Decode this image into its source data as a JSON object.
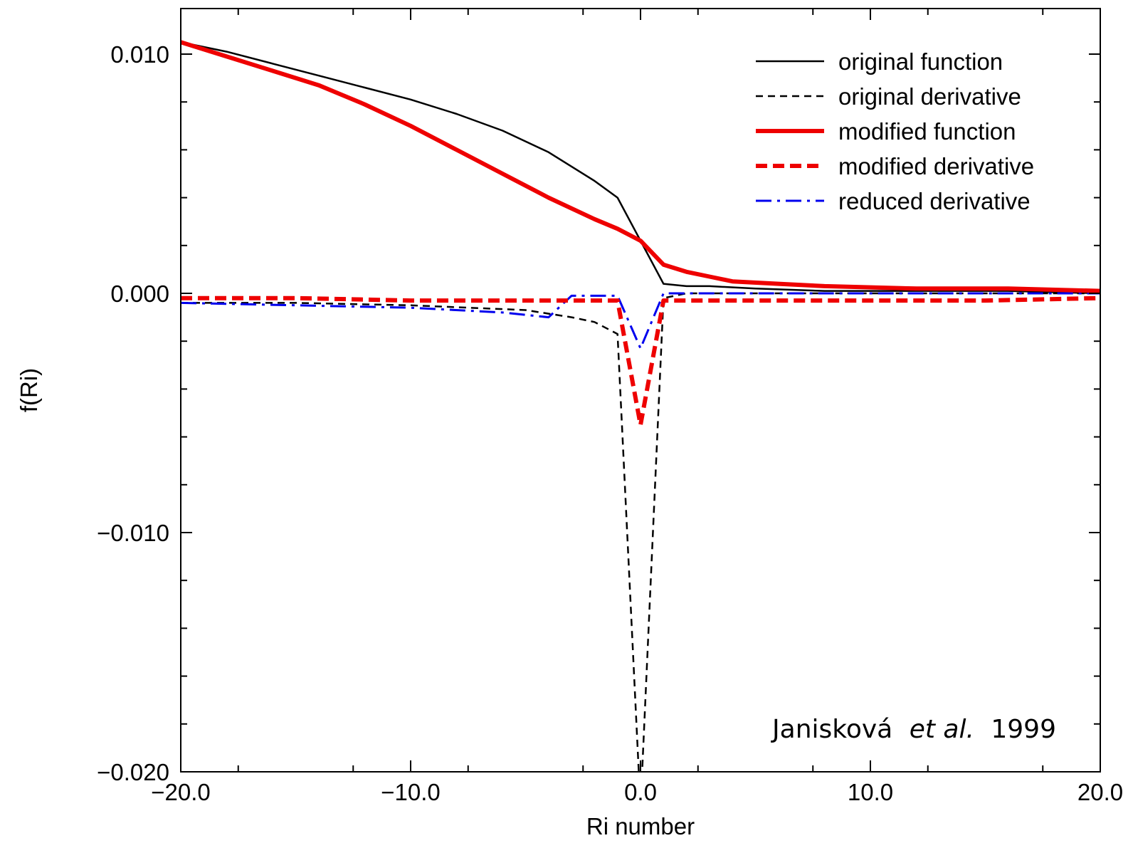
{
  "chart_data": {
    "type": "line",
    "title": "",
    "xlabel": "Ri number",
    "ylabel": "f(Ri)",
    "xlim": [
      -20,
      20
    ],
    "ylim": [
      -0.02,
      0.012
    ],
    "grid": false,
    "legend_position": "top-right",
    "x_ticks": [
      {
        "value": -20,
        "label": "−20.0"
      },
      {
        "value": -10,
        "label": "−10.0"
      },
      {
        "value": 0,
        "label": "0.0"
      },
      {
        "value": 10,
        "label": "10.0"
      },
      {
        "value": 20,
        "label": "20.0"
      }
    ],
    "y_ticks": [
      {
        "value": 0.01,
        "label": "0.010"
      },
      {
        "value": 0.0,
        "label": "0.000"
      },
      {
        "value": -0.01,
        "label": "−0.010"
      },
      {
        "value": -0.02,
        "label": "−0.020"
      }
    ],
    "annotation": {
      "author": "Janisková",
      "etal": "et al.",
      "year": "1999"
    },
    "series": [
      {
        "name": "original function",
        "color": "#000000",
        "style": "solid",
        "x": [
          -20,
          -18,
          -16,
          -14,
          -12,
          -10,
          -8,
          -6,
          -4,
          -3,
          -2,
          -1,
          0,
          1,
          2,
          3,
          5,
          8,
          12,
          16,
          20
        ],
        "y": [
          0.0105,
          0.0101,
          0.0096,
          0.0091,
          0.0086,
          0.0081,
          0.0075,
          0.0068,
          0.0059,
          0.0053,
          0.0047,
          0.004,
          0.0022,
          0.0004,
          0.0003,
          0.0003,
          0.0002,
          0.0001,
          0.0001,
          0.0001,
          0.0
        ]
      },
      {
        "name": "original derivative",
        "color": "#000000",
        "style": "dashed",
        "x": [
          -20,
          -15,
          -10,
          -5,
          -3,
          -2,
          -1,
          0,
          1,
          2,
          5,
          10,
          15,
          20
        ],
        "y": [
          -0.0004,
          -0.0004,
          -0.0005,
          -0.0007,
          -0.001,
          -0.0012,
          -0.0017,
          -0.0215,
          -0.0002,
          0.0,
          0.0,
          0.0,
          0.0,
          0.0
        ]
      },
      {
        "name": "modified function",
        "color": "#ee0000",
        "style": "solid",
        "x": [
          -20,
          -18,
          -16,
          -14,
          -12,
          -10,
          -8,
          -6,
          -4,
          -2,
          -1,
          0,
          1,
          2,
          3,
          4,
          6,
          8,
          12,
          16,
          20
        ],
        "y": [
          0.0105,
          0.0099,
          0.0093,
          0.0087,
          0.0079,
          0.007,
          0.006,
          0.005,
          0.004,
          0.0031,
          0.0027,
          0.0022,
          0.0012,
          0.0009,
          0.0007,
          0.0005,
          0.0004,
          0.0003,
          0.0002,
          0.0002,
          0.0001
        ]
      },
      {
        "name": "modified derivative",
        "color": "#ee0000",
        "style": "dashed",
        "x": [
          -20,
          -15,
          -10,
          -5,
          -1,
          0,
          1,
          5,
          10,
          15,
          20
        ],
        "y": [
          -0.0002,
          -0.0002,
          -0.0003,
          -0.0003,
          -0.0003,
          -0.0055,
          -0.0003,
          -0.0003,
          -0.0003,
          -0.0003,
          -0.0002
        ]
      },
      {
        "name": "reduced derivative",
        "color": "#0000ee",
        "style": "dashdot",
        "x": [
          -20,
          -15,
          -10,
          -6,
          -4,
          -3,
          -2,
          -1,
          0,
          1,
          2,
          5,
          10,
          15,
          20
        ],
        "y": [
          -0.0004,
          -0.0005,
          -0.0006,
          -0.0008,
          -0.001,
          -0.0001,
          -0.0001,
          -0.0001,
          -0.0023,
          0.0,
          0.0,
          0.0,
          0.0,
          0.0,
          0.0
        ]
      }
    ]
  }
}
